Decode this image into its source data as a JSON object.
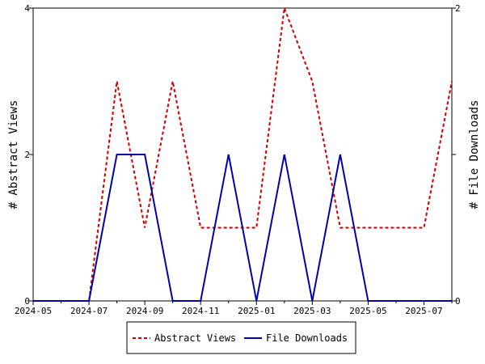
{
  "chart_data": {
    "type": "line",
    "x": [
      "2024-05",
      "2024-06",
      "2024-07",
      "2024-08",
      "2024-09",
      "2024-10",
      "2024-11",
      "2024-12",
      "2025-01",
      "2025-02",
      "2025-03",
      "2025-04",
      "2025-05",
      "2025-06",
      "2025-07",
      "2025-08"
    ],
    "x_ticks": [
      "2024-05",
      "2024-07",
      "2024-09",
      "2024-11",
      "2025-01",
      "2025-03",
      "2025-05",
      "2025-07"
    ],
    "series": [
      {
        "name": "Abstract Views",
        "axis": "left",
        "color": "#cc0000",
        "dash": "dashed",
        "values": [
          0,
          0,
          0,
          3,
          1,
          3,
          1,
          1,
          1,
          4,
          3,
          1,
          1,
          1,
          1,
          3
        ]
      },
      {
        "name": "File Downloads",
        "axis": "right",
        "color": "#0000aa",
        "dash": "solid",
        "values": [
          0,
          0,
          0,
          1,
          1,
          0,
          0,
          1,
          0,
          1,
          0,
          1,
          0,
          0,
          0,
          0
        ]
      }
    ],
    "ylabel": "# Abstract Views",
    "y2label": "# File Downloads",
    "ylim": [
      0,
      4
    ],
    "y_ticks": [
      "0",
      "2",
      "4"
    ],
    "y2lim": [
      0,
      2
    ],
    "y2_ticks": [
      "0",
      "1",
      "2"
    ],
    "legend_placement": "bottom-center",
    "grid": false
  }
}
